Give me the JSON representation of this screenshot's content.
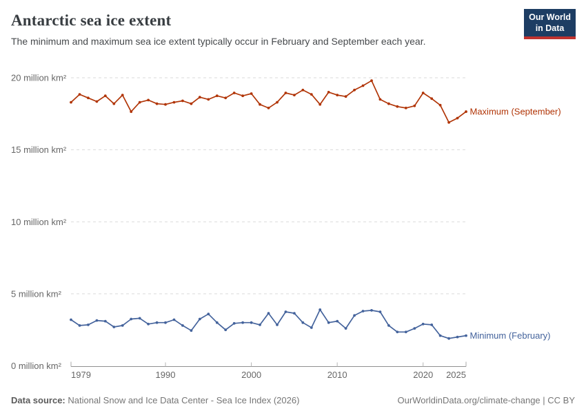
{
  "header": {
    "title": "Antarctic sea ice extent",
    "subtitle": "The minimum and maximum sea ice extent typically occur in February and September each year.",
    "logo": {
      "line1": "Our World",
      "line2": "in Data"
    }
  },
  "chart_data": {
    "type": "line",
    "title": "Antarctic sea ice extent",
    "x": [
      1979,
      1980,
      1981,
      1982,
      1983,
      1984,
      1985,
      1986,
      1987,
      1988,
      1989,
      1990,
      1991,
      1992,
      1993,
      1994,
      1995,
      1996,
      1997,
      1998,
      1999,
      2000,
      2001,
      2002,
      2003,
      2004,
      2005,
      2006,
      2007,
      2008,
      2009,
      2010,
      2011,
      2012,
      2013,
      2014,
      2015,
      2016,
      2017,
      2018,
      2019,
      2020,
      2021,
      2022,
      2023,
      2024,
      2025
    ],
    "series": [
      {
        "name": "Maximum (September)",
        "color": "#b13507",
        "values": [
          18.3,
          18.85,
          18.6,
          18.35,
          18.75,
          18.2,
          18.8,
          17.65,
          18.3,
          18.45,
          18.2,
          18.15,
          18.3,
          18.4,
          18.2,
          18.65,
          18.5,
          18.75,
          18.6,
          18.95,
          18.75,
          18.9,
          18.15,
          17.9,
          18.3,
          18.95,
          18.8,
          19.15,
          18.85,
          18.15,
          19.0,
          18.8,
          18.7,
          19.15,
          19.45,
          19.8,
          18.5,
          18.2,
          18.0,
          17.9,
          18.05,
          18.95,
          18.55,
          18.1,
          16.9,
          17.2,
          17.65
        ]
      },
      {
        "name": "Minimum (February)",
        "color": "#44639c",
        "values": [
          3.2,
          2.8,
          2.85,
          3.15,
          3.1,
          2.7,
          2.8,
          3.25,
          3.3,
          2.9,
          3.0,
          3.0,
          3.2,
          2.8,
          2.45,
          3.25,
          3.6,
          3.0,
          2.5,
          2.95,
          3.0,
          3.0,
          2.85,
          3.65,
          2.85,
          3.75,
          3.65,
          3.0,
          2.65,
          3.9,
          3.0,
          3.1,
          2.6,
          3.5,
          3.8,
          3.85,
          3.75,
          2.8,
          2.35,
          2.35,
          2.6,
          2.9,
          2.85,
          2.1,
          1.9,
          2.0,
          2.1
        ]
      }
    ],
    "ylim": [
      0,
      20
    ],
    "xlim": [
      1979,
      2025
    ],
    "yticks": [
      0,
      5,
      10,
      15,
      20
    ],
    "ytick_label_suffix": " million km²",
    "xticks": [
      1979,
      1990,
      2000,
      2010,
      2020,
      2025
    ],
    "grid": "horizontal-dashed",
    "legend_position": "end-of-line-labels"
  },
  "footer": {
    "source_label": "Data source:",
    "source_text": "National Snow and Ice Data Center - Sea Ice Index (2026)",
    "credit": "OurWorldinData.org/climate-change | CC BY"
  },
  "colors": {
    "maximum_series": "#b13507",
    "minimum_series": "#44639c",
    "gridline": "#dadada",
    "axis": "#8f8f8f",
    "tick_text": "#666666"
  }
}
